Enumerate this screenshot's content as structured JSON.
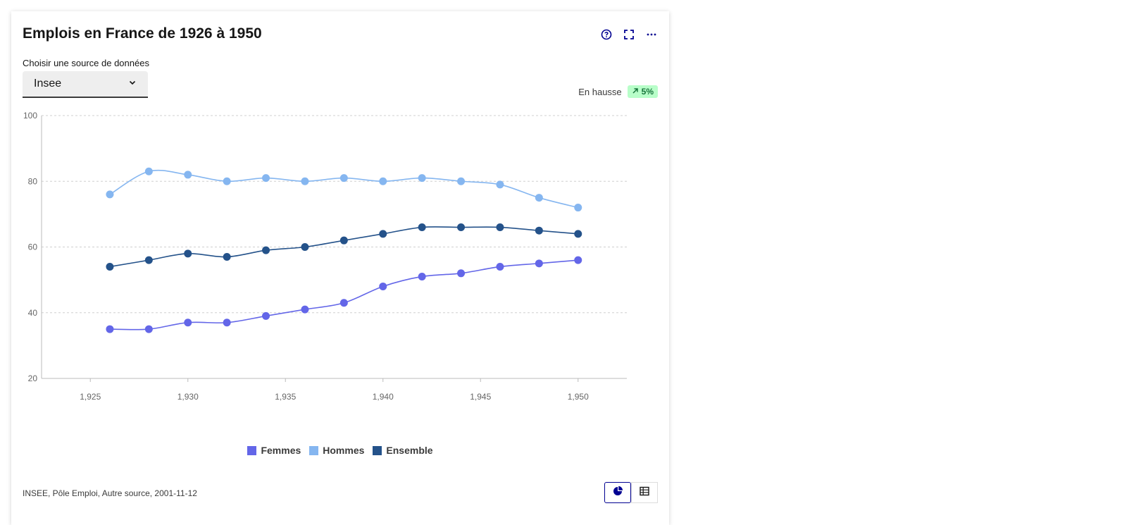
{
  "card": {
    "title": "Emplois en France de 1926 à 1950",
    "actions": [
      "help-icon",
      "fullscreen-icon",
      "more-icon"
    ]
  },
  "source_select": {
    "label": "Choisir une source de données",
    "value": "Insee"
  },
  "trend": {
    "label": "En hausse",
    "badge": "5%",
    "badge_icon": "arrow-up-right-icon"
  },
  "footer": {
    "source": "INSEE, Pôle Emploi, Autre source, 2001-11-12",
    "views": [
      "chart-icon",
      "table-icon"
    ],
    "active_view": "chart-icon"
  },
  "colors": {
    "accent": "#000091",
    "femmes": "#6366e8",
    "hommes": "#85b6f0",
    "ensemble": "#24528a",
    "badge_bg": "#b8fec9",
    "badge_text": "#18753c"
  },
  "chart_data": {
    "type": "line",
    "x": [
      1926,
      1928,
      1930,
      1932,
      1934,
      1936,
      1938,
      1940,
      1942,
      1944,
      1946,
      1948,
      1950
    ],
    "xticks": [
      1925,
      1930,
      1935,
      1940,
      1945,
      1950
    ],
    "xtick_labels": [
      "1,925",
      "1,930",
      "1,935",
      "1,940",
      "1,945",
      "1,950"
    ],
    "xlim": [
      1922.5,
      1952.5
    ],
    "ylim": [
      20,
      100
    ],
    "yticks": [
      20,
      40,
      60,
      80,
      100
    ],
    "grid": "horizontal dashed",
    "legend_position": "bottom",
    "series": [
      {
        "name": "Femmes",
        "color": "#6366e8",
        "values": [
          35,
          35,
          37,
          37,
          39,
          41,
          43,
          48,
          51,
          52,
          54,
          55,
          56
        ]
      },
      {
        "name": "Hommes",
        "color": "#85b6f0",
        "values": [
          76,
          83,
          82,
          80,
          81,
          80,
          81,
          80,
          81,
          80,
          79,
          75,
          72
        ]
      },
      {
        "name": "Ensemble",
        "color": "#24528a",
        "values": [
          54,
          56,
          58,
          57,
          59,
          60,
          62,
          64,
          66,
          66,
          66,
          65,
          64
        ]
      }
    ]
  }
}
